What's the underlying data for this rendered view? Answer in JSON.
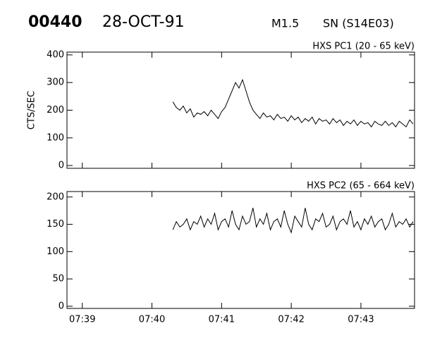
{
  "header": {
    "id": "00440",
    "date": "28-OCT-91",
    "class": "M1.5",
    "location": "SN (S14E03)"
  },
  "chart_data": [
    {
      "type": "line",
      "title": "HXS PC1 (20 - 65 keV)",
      "ylabel": "CTS/SEC",
      "color": "#000000",
      "xlim": [
        38.78,
        43.77
      ],
      "ylim": [
        -10,
        410
      ],
      "yticks": [
        0,
        100,
        200,
        300,
        400
      ],
      "x": [
        40.3,
        40.35,
        40.4,
        40.45,
        40.5,
        40.55,
        40.6,
        40.65,
        40.7,
        40.75,
        40.8,
        40.85,
        40.9,
        40.95,
        41,
        41.05,
        41.1,
        41.15,
        41.2,
        41.25,
        41.3,
        41.35,
        41.4,
        41.45,
        41.5,
        41.55,
        41.6,
        41.65,
        41.7,
        41.75,
        41.8,
        41.85,
        41.9,
        41.95,
        42,
        42.05,
        42.1,
        42.15,
        42.2,
        42.25,
        42.3,
        42.35,
        42.4,
        42.45,
        42.5,
        42.55,
        42.6,
        42.65,
        42.7,
        42.75,
        42.8,
        42.85,
        42.9,
        42.95,
        43,
        43.05,
        43.1,
        43.15,
        43.2,
        43.25,
        43.3,
        43.35,
        43.4,
        43.45,
        43.5,
        43.55,
        43.6,
        43.65,
        43.7,
        43.75
      ],
      "values": [
        230,
        210,
        200,
        215,
        190,
        205,
        175,
        190,
        185,
        195,
        180,
        200,
        185,
        170,
        195,
        210,
        240,
        270,
        300,
        280,
        310,
        270,
        230,
        200,
        185,
        170,
        190,
        175,
        180,
        165,
        185,
        170,
        175,
        160,
        180,
        165,
        175,
        155,
        170,
        160,
        175,
        150,
        170,
        160,
        165,
        150,
        170,
        155,
        165,
        145,
        160,
        150,
        165,
        145,
        160,
        150,
        155,
        140,
        160,
        150,
        145,
        160,
        145,
        155,
        140,
        160,
        150,
        140,
        165,
        150
      ]
    },
    {
      "type": "line",
      "title": "HXS PC2 (65 - 664 keV)",
      "color": "#000000",
      "xlim": [
        38.78,
        43.77
      ],
      "ylim": [
        -4,
        210
      ],
      "yticks": [
        0,
        50,
        100,
        150,
        200
      ],
      "xticks": [
        {
          "value": 39,
          "label": "07:39"
        },
        {
          "value": 40,
          "label": "07:40"
        },
        {
          "value": 41,
          "label": "07:41"
        },
        {
          "value": 42,
          "label": "07:42"
        },
        {
          "value": 43,
          "label": "07:43"
        }
      ],
      "x": [
        40.3,
        40.35,
        40.4,
        40.45,
        40.5,
        40.55,
        40.6,
        40.65,
        40.7,
        40.75,
        40.8,
        40.85,
        40.9,
        40.95,
        41,
        41.05,
        41.1,
        41.15,
        41.2,
        41.25,
        41.3,
        41.35,
        41.4,
        41.45,
        41.5,
        41.55,
        41.6,
        41.65,
        41.7,
        41.75,
        41.8,
        41.85,
        41.9,
        41.95,
        42,
        42.05,
        42.1,
        42.15,
        42.2,
        42.25,
        42.3,
        42.35,
        42.4,
        42.45,
        42.5,
        42.55,
        42.6,
        42.65,
        42.7,
        42.75,
        42.8,
        42.85,
        42.9,
        42.95,
        43,
        43.05,
        43.1,
        43.15,
        43.2,
        43.25,
        43.3,
        43.35,
        43.4,
        43.45,
        43.5,
        43.55,
        43.6,
        43.65,
        43.7,
        43.75
      ],
      "values": [
        140,
        155,
        145,
        150,
        160,
        140,
        155,
        150,
        165,
        145,
        160,
        150,
        170,
        140,
        155,
        160,
        145,
        175,
        150,
        140,
        165,
        150,
        155,
        180,
        145,
        160,
        150,
        170,
        140,
        155,
        160,
        145,
        175,
        150,
        135,
        165,
        155,
        145,
        180,
        150,
        140,
        160,
        155,
        170,
        145,
        150,
        165,
        140,
        155,
        160,
        150,
        175,
        145,
        155,
        140,
        160,
        150,
        165,
        145,
        155,
        160,
        140,
        150,
        170,
        145,
        155,
        150,
        160,
        145,
        155
      ]
    }
  ]
}
